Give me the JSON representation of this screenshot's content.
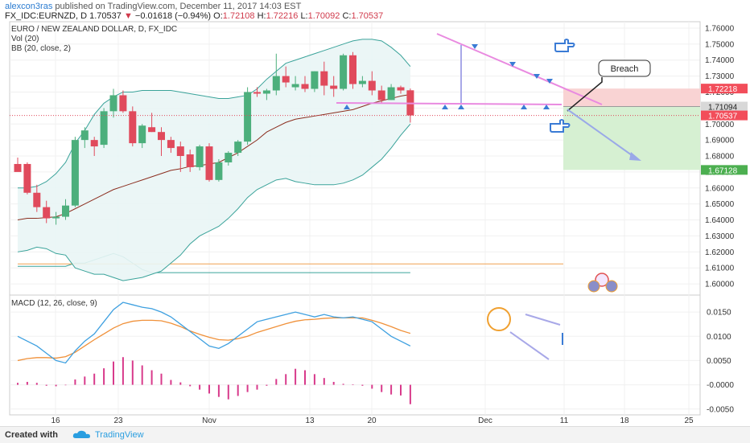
{
  "header": {
    "author": "alexcon3ras",
    "published_text": "published on TradingView.com, December 11, 2017 14:03 EST",
    "symbol_line": "FX_IDC:EURNZD, D",
    "last": "1.70537",
    "change_arrow": "▼",
    "change": "−0.01618 (−0.94%)",
    "ohlc": [
      {
        "label": "O:",
        "value": "1.72108"
      },
      {
        "label": "H:",
        "value": "1.72216"
      },
      {
        "label": "L:",
        "value": "1.70092"
      },
      {
        "label": "C:",
        "value": "1.70537"
      }
    ]
  },
  "legend": {
    "title": "EURO / NEW ZEALAND DOLLAR, D, FX_IDC",
    "vol": "Vol (20)",
    "bb": "BB (20, close, 2)",
    "macd": "MACD (12, 26, close, 9)"
  },
  "footer": {
    "created_with": "Created with",
    "brand": "TradingView"
  },
  "colors": {
    "up": "#4caf7c",
    "down": "#e04a5c",
    "bb_line": "#3aa39a",
    "bb_fill": "#e9f5f5",
    "basis": "#8b2e1f",
    "macd": "#3ea0e0",
    "signal": "#f0913a",
    "hist": "#d83a8b",
    "annot_pink": "#e98ae0",
    "annot_blue": "#3a7bd5",
    "tp_green": "#d6f0d2",
    "sl_red": "#f9d3d3"
  },
  "chart_data": [
    {
      "type": "candlestick",
      "title": "EURO / NEW ZEALAND DOLLAR, D, FX_IDC",
      "x_tick_labels": [
        "16",
        "23",
        "Nov",
        "13",
        "20",
        "Dec",
        "11",
        "18",
        "25"
      ],
      "y_ticks": [
        "1.76000",
        "1.75000",
        "1.74000",
        "1.73000",
        "1.72000",
        "1.71000",
        "1.70000",
        "1.69000",
        "1.68000",
        "1.67000",
        "1.66000",
        "1.65000",
        "1.64000",
        "1.63000",
        "1.62000",
        "1.61000",
        "1.60000"
      ],
      "ylim": [
        1.593,
        1.764
      ],
      "price_tags": [
        {
          "value": "1.72218",
          "kind": "sl"
        },
        {
          "value": "1.71094",
          "kind": "entry"
        },
        {
          "value": "1.70537",
          "kind": "last"
        },
        {
          "value": "1.67128",
          "kind": "tp"
        }
      ],
      "candles": [
        {
          "o": 1.675,
          "h": 1.679,
          "l": 1.671,
          "c": 1.67
        },
        {
          "o": 1.675,
          "h": 1.676,
          "l": 1.656,
          "c": 1.657
        },
        {
          "o": 1.657,
          "h": 1.662,
          "l": 1.645,
          "c": 1.648
        },
        {
          "o": 1.648,
          "h": 1.652,
          "l": 1.638,
          "c": 1.641
        },
        {
          "o": 1.641,
          "h": 1.645,
          "l": 1.637,
          "c": 1.642
        },
        {
          "o": 1.642,
          "h": 1.653,
          "l": 1.64,
          "c": 1.649
        },
        {
          "o": 1.649,
          "h": 1.692,
          "l": 1.648,
          "c": 1.69
        },
        {
          "o": 1.69,
          "h": 1.698,
          "l": 1.685,
          "c": 1.696
        },
        {
          "o": 1.69,
          "h": 1.692,
          "l": 1.68,
          "c": 1.686
        },
        {
          "o": 1.687,
          "h": 1.71,
          "l": 1.685,
          "c": 1.708
        },
        {
          "o": 1.708,
          "h": 1.722,
          "l": 1.704,
          "c": 1.718
        },
        {
          "o": 1.718,
          "h": 1.721,
          "l": 1.707,
          "c": 1.708
        },
        {
          "o": 1.708,
          "h": 1.711,
          "l": 1.686,
          "c": 1.688
        },
        {
          "o": 1.688,
          "h": 1.7,
          "l": 1.685,
          "c": 1.699
        },
        {
          "o": 1.698,
          "h": 1.707,
          "l": 1.695,
          "c": 1.695
        },
        {
          "o": 1.695,
          "h": 1.698,
          "l": 1.68,
          "c": 1.69
        },
        {
          "o": 1.69,
          "h": 1.692,
          "l": 1.682,
          "c": 1.685
        },
        {
          "o": 1.686,
          "h": 1.689,
          "l": 1.67,
          "c": 1.68
        },
        {
          "o": 1.681,
          "h": 1.684,
          "l": 1.67,
          "c": 1.673
        },
        {
          "o": 1.673,
          "h": 1.687,
          "l": 1.671,
          "c": 1.686
        },
        {
          "o": 1.686,
          "h": 1.688,
          "l": 1.664,
          "c": 1.665
        },
        {
          "o": 1.665,
          "h": 1.678,
          "l": 1.664,
          "c": 1.676
        },
        {
          "o": 1.676,
          "h": 1.683,
          "l": 1.674,
          "c": 1.682
        },
        {
          "o": 1.682,
          "h": 1.69,
          "l": 1.68,
          "c": 1.689
        },
        {
          "o": 1.689,
          "h": 1.723,
          "l": 1.687,
          "c": 1.72
        },
        {
          "o": 1.72,
          "h": 1.723,
          "l": 1.717,
          "c": 1.719
        },
        {
          "o": 1.719,
          "h": 1.722,
          "l": 1.715,
          "c": 1.721
        },
        {
          "o": 1.721,
          "h": 1.744,
          "l": 1.718,
          "c": 1.73
        },
        {
          "o": 1.73,
          "h": 1.736,
          "l": 1.723,
          "c": 1.726
        },
        {
          "o": 1.723,
          "h": 1.73,
          "l": 1.721,
          "c": 1.725
        },
        {
          "o": 1.725,
          "h": 1.73,
          "l": 1.72,
          "c": 1.722
        },
        {
          "o": 1.722,
          "h": 1.733,
          "l": 1.72,
          "c": 1.733
        },
        {
          "o": 1.733,
          "h": 1.739,
          "l": 1.718,
          "c": 1.724
        },
        {
          "o": 1.724,
          "h": 1.73,
          "l": 1.717,
          "c": 1.722
        },
        {
          "o": 1.722,
          "h": 1.744,
          "l": 1.721,
          "c": 1.743
        },
        {
          "o": 1.743,
          "h": 1.745,
          "l": 1.722,
          "c": 1.725
        },
        {
          "o": 1.725,
          "h": 1.73,
          "l": 1.723,
          "c": 1.727
        },
        {
          "o": 1.727,
          "h": 1.733,
          "l": 1.718,
          "c": 1.721
        },
        {
          "o": 1.721,
          "h": 1.724,
          "l": 1.713,
          "c": 1.715
        },
        {
          "o": 1.715,
          "h": 1.725,
          "l": 1.715,
          "c": 1.723
        },
        {
          "o": 1.723,
          "h": 1.724,
          "l": 1.719,
          "c": 1.721
        },
        {
          "o": 1.7211,
          "h": 1.7222,
          "l": 1.7009,
          "c": 1.7054
        }
      ],
      "bb_upper": [
        1.66,
        1.66,
        1.661,
        1.664,
        1.669,
        1.676,
        1.688,
        1.696,
        1.706,
        1.713,
        1.717,
        1.72,
        1.72,
        1.721,
        1.721,
        1.721,
        1.721,
        1.72,
        1.719,
        1.718,
        1.717,
        1.716,
        1.716,
        1.717,
        1.718,
        1.722,
        1.728,
        1.733,
        1.738,
        1.74,
        1.742,
        1.744,
        1.746,
        1.748,
        1.75,
        1.752,
        1.753,
        1.753,
        1.752,
        1.748,
        1.743,
        1.736
      ],
      "bb_basis": [
        1.64,
        1.641,
        1.641,
        1.6415,
        1.642,
        1.644,
        1.647,
        1.65,
        1.653,
        1.656,
        1.659,
        1.661,
        1.663,
        1.665,
        1.667,
        1.669,
        1.671,
        1.672,
        1.6735,
        1.674,
        1.675,
        1.676,
        1.679,
        1.682,
        1.686,
        1.69,
        1.695,
        1.698,
        1.701,
        1.703,
        1.704,
        1.705,
        1.706,
        1.707,
        1.708,
        1.709,
        1.711,
        1.713,
        1.7145,
        1.716,
        1.7175,
        1.7185
      ],
      "bb_lower": [
        1.62,
        1.621,
        1.623,
        1.622,
        1.619,
        1.618,
        1.61,
        1.608,
        1.606,
        1.606,
        1.604,
        1.602,
        1.603,
        1.604,
        1.606,
        1.608,
        1.613,
        1.618,
        1.625,
        1.63,
        1.633,
        1.636,
        1.641,
        1.647,
        1.654,
        1.659,
        1.662,
        1.665,
        1.666,
        1.664,
        1.663,
        1.662,
        1.662,
        1.662,
        1.663,
        1.665,
        1.668,
        1.673,
        1.678,
        1.685,
        1.693,
        1.7
      ],
      "volume": [
        0.09,
        0.09,
        0.09,
        0.09,
        0.09,
        0.09,
        0.1,
        0.1,
        0.11,
        0.12,
        0.13,
        0.12,
        0.1,
        0.08,
        0.07,
        0.07,
        0.07,
        0.07,
        0.07,
        0.07,
        0.07,
        0.07,
        0.07,
        0.07,
        0.07,
        0.07,
        0.07,
        0.07,
        0.07,
        0.07,
        0.07,
        0.07,
        0.07,
        0.07,
        0.07,
        0.07,
        0.07,
        0.07,
        0.07,
        0.07,
        0.07,
        0.07
      ],
      "annotations": [
        "Breach"
      ]
    },
    {
      "type": "line",
      "title": "MACD (12, 26, close, 9)",
      "y_ticks": [
        "0.0150",
        "0.0100",
        "0.0050",
        "-0.0000",
        "-0.0050"
      ],
      "ylim": [
        -0.0062,
        0.0185
      ],
      "series": [
        {
          "name": "MACD",
          "values": [
            0.01,
            0.009,
            0.008,
            0.0065,
            0.005,
            0.0045,
            0.007,
            0.009,
            0.0105,
            0.013,
            0.0155,
            0.017,
            0.0165,
            0.016,
            0.0157,
            0.015,
            0.014,
            0.0125,
            0.011,
            0.0095,
            0.008,
            0.0075,
            0.0085,
            0.01,
            0.0115,
            0.013,
            0.0135,
            0.014,
            0.0145,
            0.015,
            0.0145,
            0.014,
            0.0145,
            0.014,
            0.0138,
            0.014,
            0.0135,
            0.013,
            0.0115,
            0.01,
            0.009,
            0.008
          ]
        },
        {
          "name": "Signal",
          "values": [
            0.005,
            0.0054,
            0.0056,
            0.0056,
            0.0055,
            0.0058,
            0.0067,
            0.008,
            0.0093,
            0.0105,
            0.0117,
            0.0126,
            0.0131,
            0.0133,
            0.0133,
            0.0132,
            0.0127,
            0.012,
            0.0111,
            0.0104,
            0.0098,
            0.0093,
            0.0092,
            0.0095,
            0.01,
            0.0108,
            0.0114,
            0.012,
            0.0126,
            0.0131,
            0.0134,
            0.0135,
            0.0137,
            0.0138,
            0.0138,
            0.0138,
            0.0138,
            0.0133,
            0.0127,
            0.012,
            0.0112,
            0.0106
          ]
        },
        {
          "name": "Histogram",
          "values": [
            0.0004,
            0.0006,
            0.0004,
            -0.0002,
            -0.0003,
            -0.0001,
            0.0011,
            0.0017,
            0.0023,
            0.0034,
            0.0048,
            0.0057,
            0.005,
            0.004,
            0.003,
            0.0023,
            0.001,
            0.0005,
            -0.0003,
            -0.001,
            -0.0018,
            -0.0025,
            -0.003,
            -0.0023,
            -0.0015,
            -0.001,
            -0.0002,
            0.0012,
            0.0022,
            0.0033,
            0.003,
            0.0022,
            0.0014,
            0.0006,
            0.0002,
            0.0001,
            -0.0002,
            -0.0008,
            -0.0015,
            -0.002,
            -0.0022,
            -0.004
          ]
        }
      ]
    }
  ]
}
